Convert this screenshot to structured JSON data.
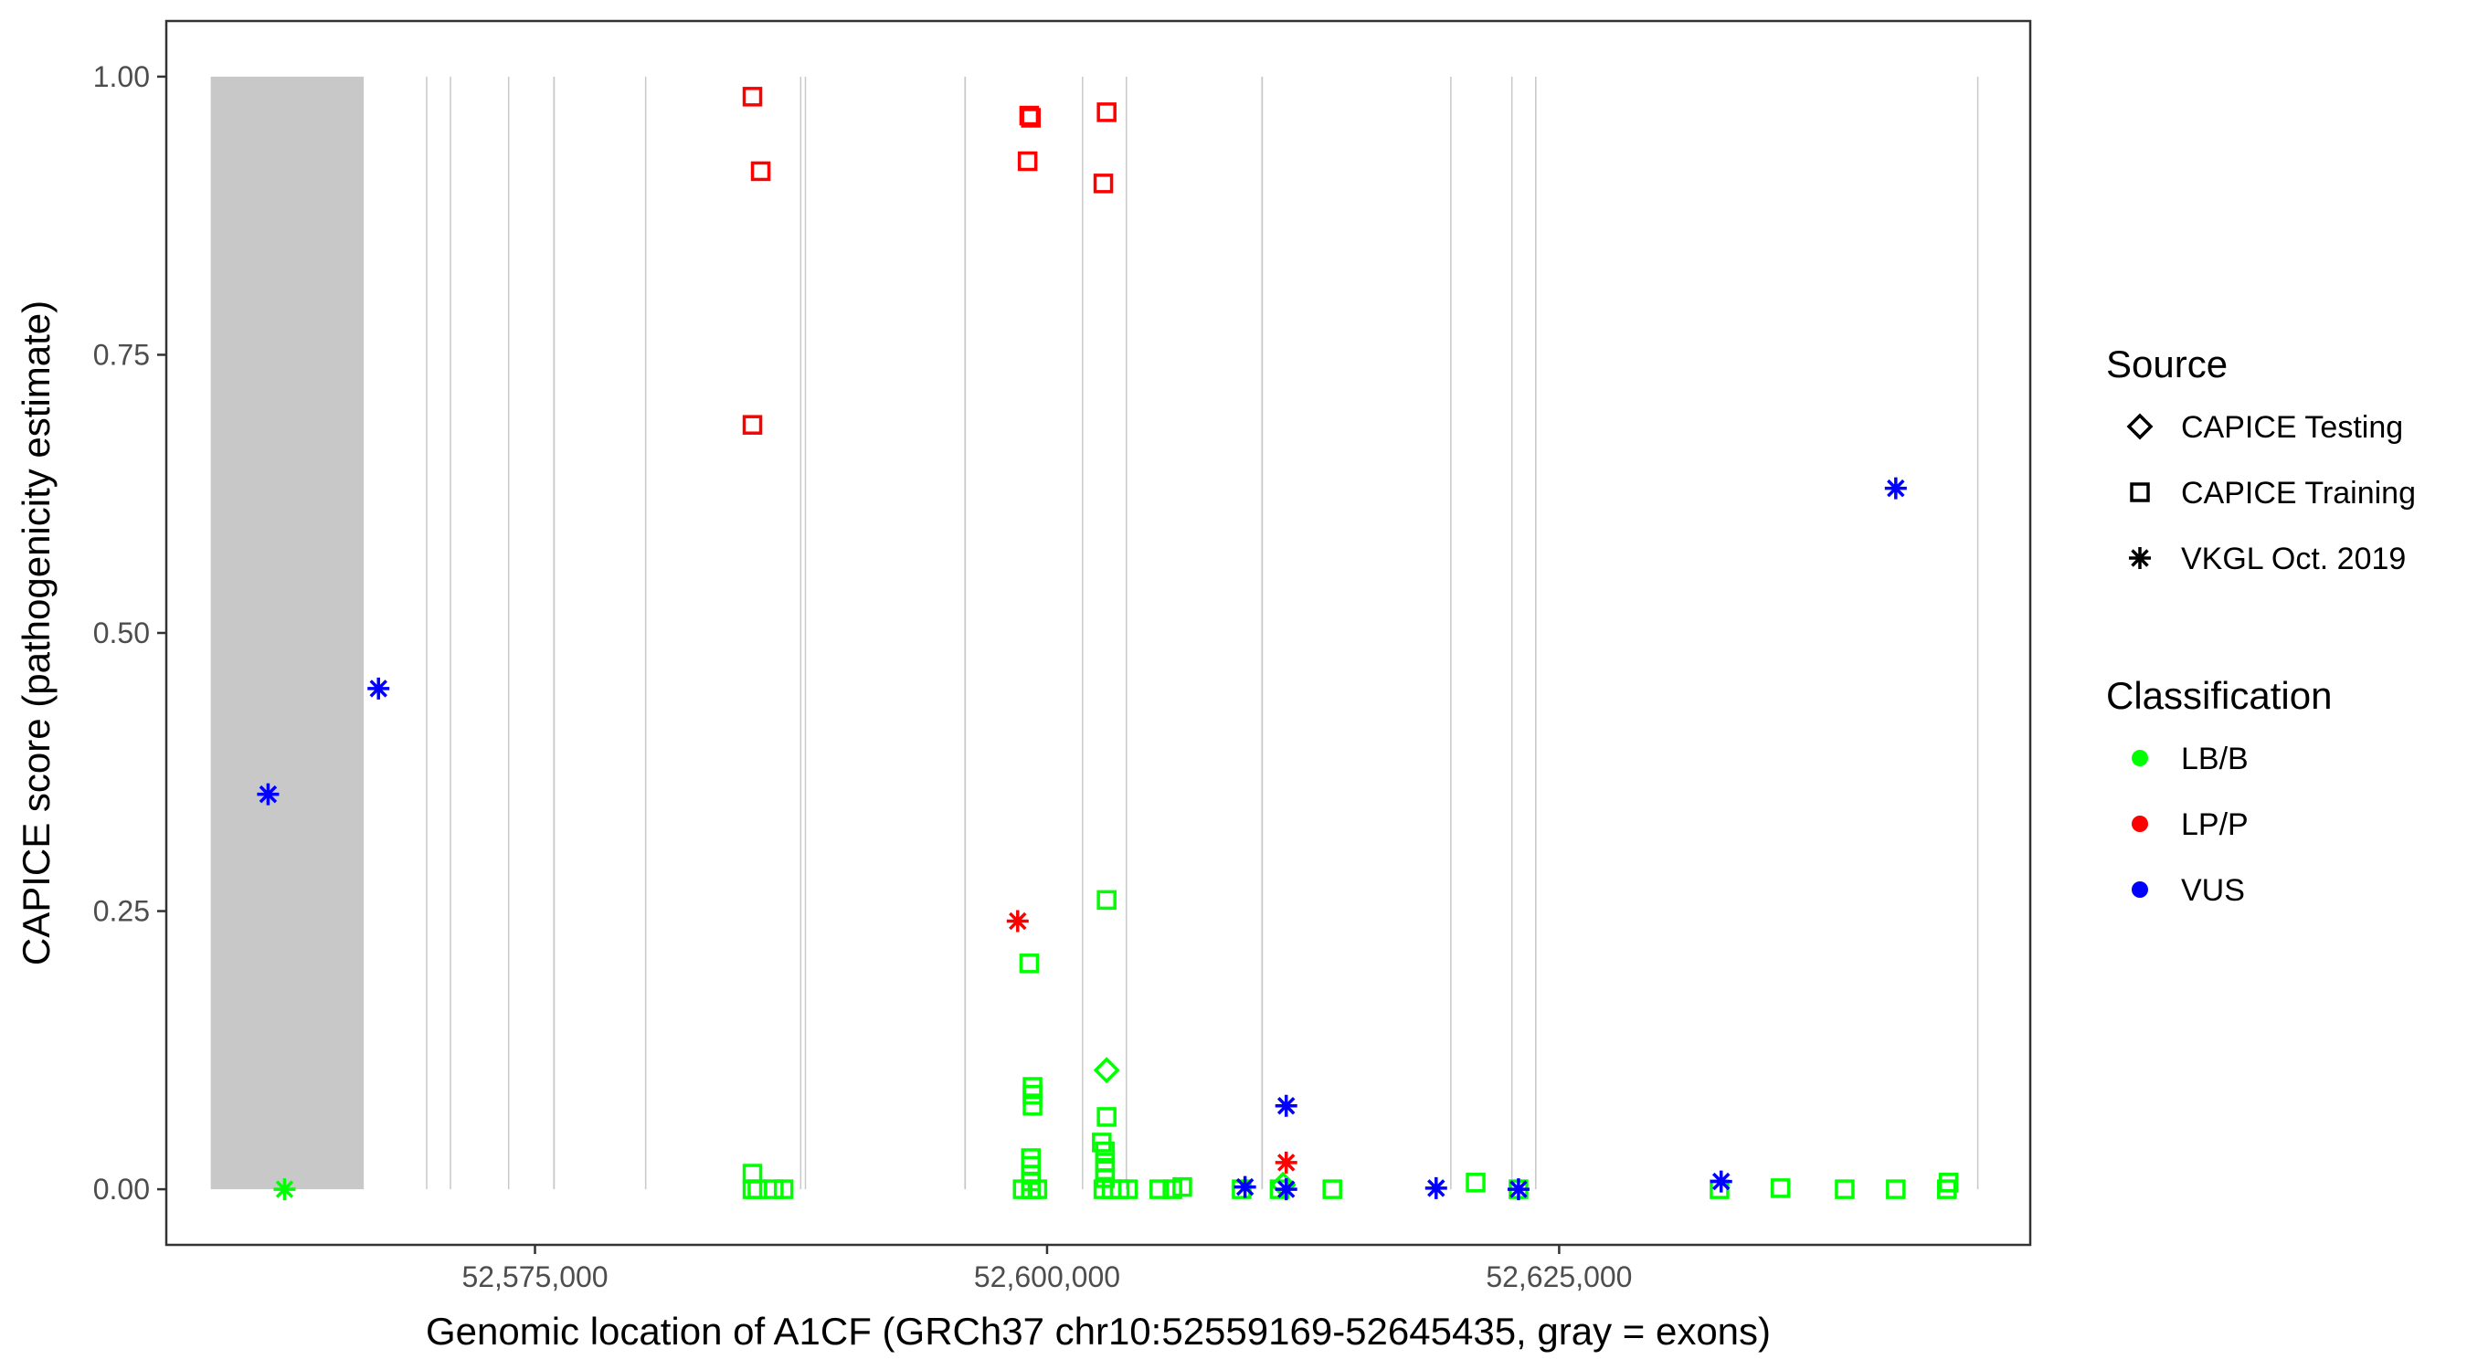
{
  "chart_data": {
    "type": "scatter",
    "title": "",
    "xlabel": "Genomic location of A1CF (GRCh37 chr10:52559169-52645435, gray = exons)",
    "ylabel": "CAPICE score (pathogenicity estimate)",
    "xlim": [
      52557000,
      52648000
    ],
    "ylim": [
      -0.05,
      1.05
    ],
    "x_ticks": [
      52575000,
      52600000,
      52625000
    ],
    "x_tick_labels": [
      "52,575,000",
      "52,600,000",
      "52,625,000"
    ],
    "y_ticks": [
      0,
      0.25,
      0.5,
      0.75,
      1.0
    ],
    "y_tick_labels": [
      "0.00",
      "0.25",
      "0.50",
      "0.75",
      "1.00"
    ],
    "grid": false,
    "legend_placement": "right",
    "exon_color": "#c8c8c8",
    "exons": [
      [
        52559169,
        52566640
      ],
      [
        52569680,
        52569720
      ],
      [
        52570840,
        52570880
      ],
      [
        52573680,
        52573720
      ],
      [
        52575890,
        52575970
      ],
      [
        52580370,
        52580410
      ],
      [
        52587940,
        52587980
      ],
      [
        52588170,
        52588210
      ],
      [
        52595960,
        52596040
      ],
      [
        52601700,
        52601740
      ],
      [
        52603840,
        52603880
      ],
      [
        52610460,
        52610540
      ],
      [
        52619680,
        52619720
      ],
      [
        52622660,
        52622700
      ],
      [
        52623825,
        52623855
      ],
      [
        52645405,
        52645435
      ]
    ],
    "legend": {
      "source_title": "Source",
      "source_items": [
        {
          "label": "CAPICE Testing",
          "shape": "diamond"
        },
        {
          "label": "CAPICE Training",
          "shape": "square"
        },
        {
          "label": "VKGL Oct. 2019",
          "shape": "asterisk"
        }
      ],
      "class_title": "Classification",
      "class_items": [
        {
          "label": "LB/B",
          "color": "#00ff00"
        },
        {
          "label": "LP/P",
          "color": "#ff0000"
        },
        {
          "label": "VUS",
          "color": "#0000ff"
        }
      ]
    },
    "points": [
      {
        "x": 52561970,
        "y": 0.355,
        "source": "VKGL Oct. 2019",
        "class": "VUS"
      },
      {
        "x": 52567359,
        "y": 0.45,
        "source": "VKGL Oct. 2019",
        "class": "VUS"
      },
      {
        "x": 52562775,
        "y": 0.0,
        "source": "VKGL Oct. 2019",
        "class": "LB/B"
      },
      {
        "x": 52585617,
        "y": 0.982,
        "source": "CAPICE Training",
        "class": "LP/P"
      },
      {
        "x": 52586019,
        "y": 0.915,
        "source": "CAPICE Training",
        "class": "LP/P"
      },
      {
        "x": 52585617,
        "y": 0.687,
        "source": "CAPICE Training",
        "class": "LP/P"
      },
      {
        "x": 52585617,
        "y": 0.014,
        "source": "CAPICE Training",
        "class": "LB/B"
      },
      {
        "x": 52585617,
        "y": 0.0,
        "source": "CAPICE Training",
        "class": "LB/B"
      },
      {
        "x": 52585860,
        "y": 0.0,
        "source": "CAPICE Training",
        "class": "LB/B"
      },
      {
        "x": 52586660,
        "y": 0.0,
        "source": "CAPICE Training",
        "class": "LB/B"
      },
      {
        "x": 52587140,
        "y": 0.0,
        "source": "CAPICE Training",
        "class": "LB/B"
      },
      {
        "x": 52599129,
        "y": 0.965,
        "source": "CAPICE Training",
        "class": "LP/P"
      },
      {
        "x": 52599210,
        "y": 0.963,
        "source": "CAPICE Training",
        "class": "LP/P"
      },
      {
        "x": 52599050,
        "y": 0.924,
        "source": "CAPICE Training",
        "class": "LP/P"
      },
      {
        "x": 52602909,
        "y": 0.968,
        "source": "CAPICE Training",
        "class": "LP/P"
      },
      {
        "x": 52602748,
        "y": 0.904,
        "source": "CAPICE Training",
        "class": "LP/P"
      },
      {
        "x": 52598566,
        "y": 0.241,
        "source": "VKGL Oct. 2019",
        "class": "LP/P"
      },
      {
        "x": 52599129,
        "y": 0.203,
        "source": "CAPICE Training",
        "class": "LB/B"
      },
      {
        "x": 52602909,
        "y": 0.26,
        "source": "CAPICE Training",
        "class": "LB/B"
      },
      {
        "x": 52602909,
        "y": 0.107,
        "source": "CAPICE Testing",
        "class": "LB/B"
      },
      {
        "x": 52602909,
        "y": 0.065,
        "source": "CAPICE Training",
        "class": "LB/B"
      },
      {
        "x": 52599290,
        "y": 0.092,
        "source": "CAPICE Training",
        "class": "LB/B"
      },
      {
        "x": 52599290,
        "y": 0.085,
        "source": "CAPICE Training",
        "class": "LB/B"
      },
      {
        "x": 52599290,
        "y": 0.075,
        "source": "CAPICE Training",
        "class": "LB/B"
      },
      {
        "x": 52599210,
        "y": 0.028,
        "source": "CAPICE Training",
        "class": "LB/B"
      },
      {
        "x": 52599210,
        "y": 0.021,
        "source": "CAPICE Training",
        "class": "LB/B"
      },
      {
        "x": 52599210,
        "y": 0.013,
        "source": "CAPICE Training",
        "class": "LB/B"
      },
      {
        "x": 52599210,
        "y": 0.007,
        "source": "CAPICE Training",
        "class": "LB/B"
      },
      {
        "x": 52599210,
        "y": 0.0,
        "source": "CAPICE Training",
        "class": "LB/B"
      },
      {
        "x": 52598810,
        "y": 0.0,
        "source": "CAPICE Training",
        "class": "LB/B"
      },
      {
        "x": 52599530,
        "y": 0.0,
        "source": "CAPICE Training",
        "class": "LB/B"
      },
      {
        "x": 52602670,
        "y": 0.042,
        "source": "CAPICE Training",
        "class": "LB/B"
      },
      {
        "x": 52602830,
        "y": 0.034,
        "source": "CAPICE Training",
        "class": "LB/B"
      },
      {
        "x": 52602830,
        "y": 0.024,
        "source": "CAPICE Training",
        "class": "LB/B"
      },
      {
        "x": 52602830,
        "y": 0.017,
        "source": "CAPICE Training",
        "class": "LB/B"
      },
      {
        "x": 52602830,
        "y": 0.01,
        "source": "CAPICE Training",
        "class": "LB/B"
      },
      {
        "x": 52602748,
        "y": 0.0,
        "source": "CAPICE Training",
        "class": "LB/B"
      },
      {
        "x": 52603150,
        "y": 0.0,
        "source": "CAPICE Training",
        "class": "LB/B"
      },
      {
        "x": 52603550,
        "y": 0.0,
        "source": "CAPICE Training",
        "class": "LB/B"
      },
      {
        "x": 52603950,
        "y": 0.0,
        "source": "CAPICE Training",
        "class": "LB/B"
      },
      {
        "x": 52605480,
        "y": 0.0,
        "source": "CAPICE Training",
        "class": "LB/B"
      },
      {
        "x": 52606120,
        "y": 0.0,
        "source": "CAPICE Training",
        "class": "LB/B"
      },
      {
        "x": 52606600,
        "y": 0.002,
        "source": "CAPICE Training",
        "class": "LB/B"
      },
      {
        "x": 52609500,
        "y": 0.0,
        "source": "CAPICE Training",
        "class": "LB/B"
      },
      {
        "x": 52609665,
        "y": 0.002,
        "source": "VKGL Oct. 2019",
        "class": "VUS"
      },
      {
        "x": 52611350,
        "y": 0.0,
        "source": "CAPICE Training",
        "class": "LB/B"
      },
      {
        "x": 52611520,
        "y": 0.004,
        "source": "CAPICE Testing",
        "class": "LB/B"
      },
      {
        "x": 52611676,
        "y": 0.0,
        "source": "VKGL Oct. 2019",
        "class": "VUS"
      },
      {
        "x": 52611676,
        "y": 0.075,
        "source": "VKGL Oct. 2019",
        "class": "VUS"
      },
      {
        "x": 52611676,
        "y": 0.024,
        "source": "VKGL Oct. 2019",
        "class": "LP/P"
      },
      {
        "x": 52613928,
        "y": 0.0,
        "source": "CAPICE Training",
        "class": "LB/B"
      },
      {
        "x": 52618995,
        "y": 0.001,
        "source": "VKGL Oct. 2019",
        "class": "VUS"
      },
      {
        "x": 52620925,
        "y": 0.006,
        "source": "CAPICE Training",
        "class": "LB/B"
      },
      {
        "x": 52623017,
        "y": 0.0,
        "source": "CAPICE Training",
        "class": "LB/B"
      },
      {
        "x": 52623017,
        "y": 0.0,
        "source": "VKGL Oct. 2019",
        "class": "VUS"
      },
      {
        "x": 52632830,
        "y": 0.0,
        "source": "CAPICE Training",
        "class": "LB/B"
      },
      {
        "x": 52632910,
        "y": 0.007,
        "source": "VKGL Oct. 2019",
        "class": "VUS"
      },
      {
        "x": 52635805,
        "y": 0.001,
        "source": "CAPICE Training",
        "class": "LB/B"
      },
      {
        "x": 52638942,
        "y": 0.0,
        "source": "CAPICE Training",
        "class": "LB/B"
      },
      {
        "x": 52641435,
        "y": 0.0,
        "source": "CAPICE Training",
        "class": "LB/B"
      },
      {
        "x": 52644009,
        "y": 0.006,
        "source": "CAPICE Training",
        "class": "LB/B"
      },
      {
        "x": 52643930,
        "y": 0.0,
        "source": "CAPICE Training",
        "class": "LB/B"
      },
      {
        "x": 52641435,
        "y": 0.63,
        "source": "VKGL Oct. 2019",
        "class": "VUS"
      }
    ]
  }
}
